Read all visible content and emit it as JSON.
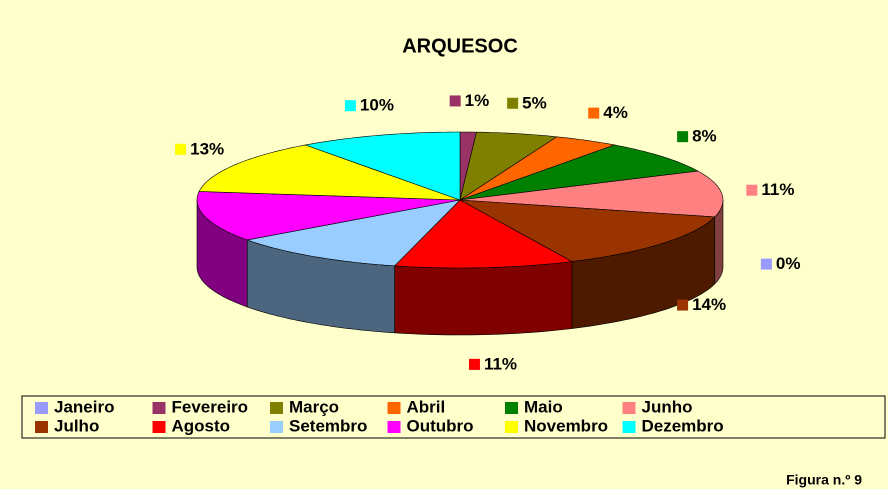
{
  "chart_data": {
    "type": "pie",
    "title": "ARQUESOC",
    "annotation": "Figura n.º 9",
    "categories": [
      "Janeiro",
      "Fevereiro",
      "Março",
      "Abril",
      "Maio",
      "Junho",
      "Julho",
      "Agosto",
      "Setembro",
      "Outubro",
      "Novembro",
      "Dezembro"
    ],
    "values": [
      0,
      1,
      5,
      4,
      8,
      11,
      14,
      11,
      11,
      12,
      13,
      10
    ],
    "value_labels": [
      "0%",
      "1%",
      "5%",
      "4%",
      "8%",
      "11%",
      "14%",
      "11%",
      null,
      null,
      "13%",
      "10%"
    ],
    "colors": [
      "#9999ff",
      "#993366",
      "#808000",
      "#ff6600",
      "#008000",
      "#ff8080",
      "#993300",
      "#ff0000",
      "#99ccff",
      "#ff00ff",
      "#ffff00",
      "#00ffff"
    ],
    "legend": "bottom"
  }
}
